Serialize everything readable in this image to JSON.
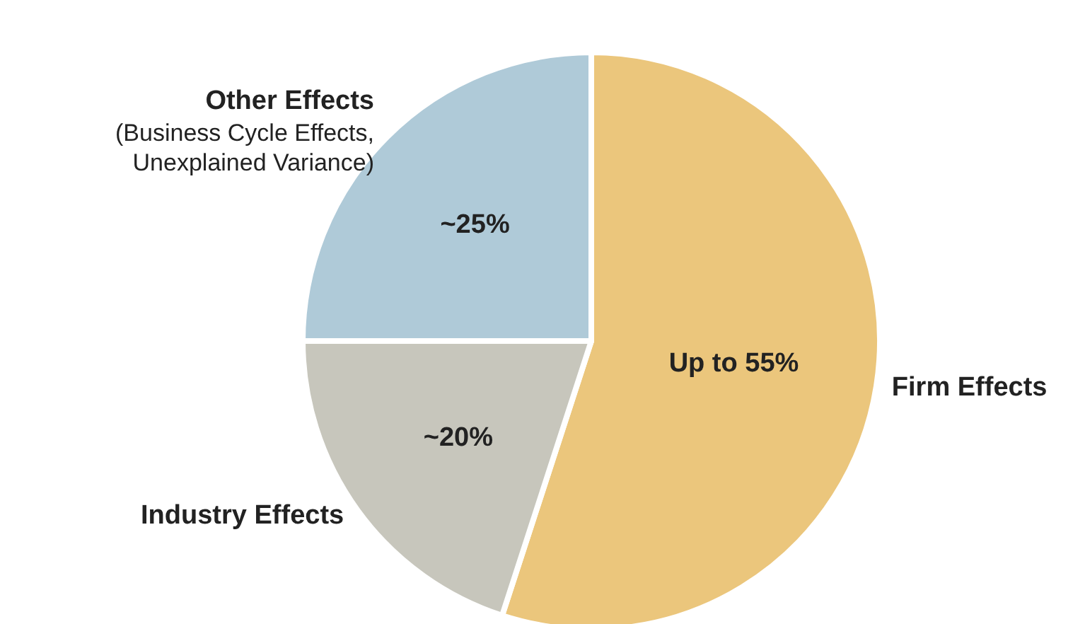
{
  "chart_data": {
    "type": "pie",
    "categories": [
      "Firm Effects",
      "Industry Effects",
      "Other Effects\n(Business Cycle Effects,\nUnexplained Variance)"
    ],
    "values": [
      55,
      20,
      25
    ],
    "value_labels": [
      "Up to 55%",
      "~20%",
      "~25%"
    ],
    "colors": [
      "#ebc67c",
      "#c7c6bc",
      "#afcad8"
    ],
    "legend": false
  }
}
